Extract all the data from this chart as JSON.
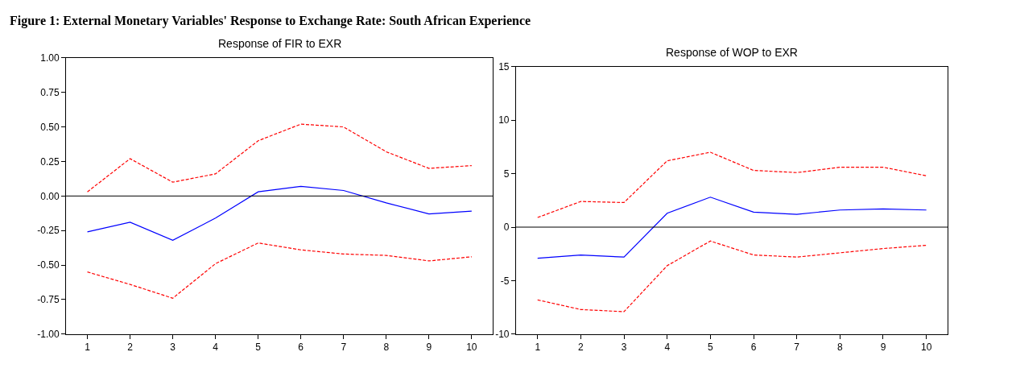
{
  "chart_data": [
    {
      "type": "line",
      "title": "Response of FIR to EXR",
      "annotations": [
        "Figure 1: External Monetary Variables' Response to Exchange Rate: South African Experience"
      ],
      "categories": [
        "1",
        "2",
        "3",
        "4",
        "5",
        "6",
        "7",
        "8",
        "9",
        "10"
      ],
      "series": [
        {
          "color": "#ff0000",
          "line_style": "dashed",
          "values": [
            0.03,
            0.27,
            0.1,
            0.16,
            0.4,
            0.52,
            0.5,
            0.32,
            0.2,
            0.22
          ]
        },
        {
          "color": "#0000ff",
          "line_style": "solid",
          "values": [
            -0.26,
            -0.19,
            -0.32,
            -0.16,
            0.03,
            0.07,
            0.04,
            -0.05,
            -0.13,
            -0.11
          ]
        },
        {
          "color": "#ff0000",
          "line_style": "dashed",
          "values": [
            -0.55,
            -0.64,
            -0.74,
            -0.49,
            -0.34,
            -0.39,
            -0.42,
            -0.43,
            -0.47,
            -0.44
          ]
        }
      ],
      "ylim": [
        -1,
        1
      ],
      "yticks": [
        {
          "value": -1,
          "label": "-1.00"
        },
        {
          "value": -0.75,
          "label": "-0.75"
        },
        {
          "value": -0.5,
          "label": "-0.50"
        },
        {
          "value": -0.25,
          "label": "-0.25"
        },
        {
          "value": 0,
          "label": "0.00"
        },
        {
          "value": 0.25,
          "label": "0.25"
        },
        {
          "value": 0.5,
          "label": "0.50"
        },
        {
          "value": 0.75,
          "label": "0.75"
        },
        {
          "value": 1,
          "label": "1.00"
        }
      ],
      "ref_lines": [
        {
          "axis": "y",
          "value": 0,
          "color": "#000000"
        }
      ],
      "marker": "none"
    },
    {
      "type": "line",
      "title": "Response of WOP to EXR",
      "categories": [
        "1",
        "2",
        "3",
        "4",
        "5",
        "6",
        "7",
        "8",
        "9",
        "10"
      ],
      "series": [
        {
          "color": "#ff0000",
          "line_style": "dashed",
          "values": [
            0.9,
            2.4,
            2.3,
            6.2,
            7.0,
            5.3,
            5.1,
            5.6,
            5.6,
            4.8
          ]
        },
        {
          "color": "#0000ff",
          "line_style": "solid",
          "values": [
            -2.9,
            -2.6,
            -2.8,
            1.3,
            2.8,
            1.4,
            1.2,
            1.6,
            1.7,
            1.6
          ]
        },
        {
          "color": "#ff0000",
          "line_style": "dashed",
          "values": [
            -6.8,
            -7.7,
            -7.9,
            -3.6,
            -1.3,
            -2.6,
            -2.8,
            -2.4,
            -2.0,
            -1.7
          ]
        }
      ],
      "ylim": [
        -10,
        15
      ],
      "yticks": [
        -10,
        -5,
        0,
        5,
        10,
        15
      ],
      "ref_lines": [
        {
          "axis": "y",
          "value": 0,
          "color": "#000000"
        }
      ],
      "marker": "none"
    }
  ]
}
